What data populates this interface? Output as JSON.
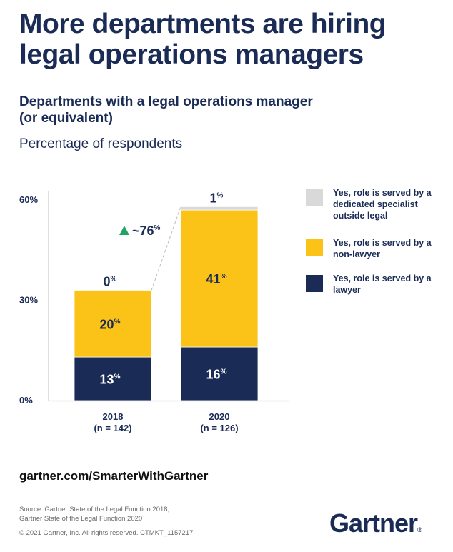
{
  "header": {
    "title": "More departments are hiring legal operations managers",
    "subtitle": "Departments with a legal operations manager (or equivalent)",
    "unit_label": "Percentage of respondents"
  },
  "chart_data": {
    "type": "bar",
    "stacked": true,
    "title": "Departments with a legal operations manager (or equivalent)",
    "ylabel": "Percentage of respondents",
    "xlabel": "",
    "ylim": [
      0,
      60
    ],
    "yticks": [
      "0%",
      "30%",
      "60%"
    ],
    "ytick_values": [
      0,
      30,
      60
    ],
    "categories": [
      "2018",
      "2020"
    ],
    "category_notes": [
      "(n = 142)",
      "(n = 126)"
    ],
    "series": [
      {
        "name": "Yes, role is served by a lawyer",
        "values": [
          13,
          16
        ],
        "color": "#1a2b56",
        "label_color": "#ffffff"
      },
      {
        "name": "Yes, role is served by a non-lawyer",
        "values": [
          20,
          41
        ],
        "color": "#fbc217",
        "label_color": "#1a2b56"
      },
      {
        "name": "Yes, role is served by a dedicated specialist outside legal",
        "values": [
          0,
          1
        ],
        "color": "#d9d9d9",
        "label_color": "#1a2b56"
      }
    ],
    "annotation": {
      "text": "~76",
      "suffix": "%",
      "direction": "up",
      "color": "#1fa463"
    },
    "legend_position": "right",
    "grid": false
  },
  "legend": {
    "items": [
      {
        "label": "Yes, role is served by a dedicated specialist outside legal",
        "color": "#d9d9d9"
      },
      {
        "label": "Yes, role is served by a non-lawyer",
        "color": "#fbc217"
      },
      {
        "label": "Yes, role is served by a lawyer",
        "color": "#1a2b56"
      }
    ]
  },
  "footer": {
    "url": "gartner.com/SmarterWithGartner",
    "source_line1": "Source: Gartner State of the Legal Function 2018;",
    "source_line2": "Gartner State of the Legal Function 2020",
    "copyright": "© 2021 Gartner, Inc. All rights reserved. CTMKT_1157217",
    "logo": "Gartner",
    "logo_mark": "®"
  }
}
